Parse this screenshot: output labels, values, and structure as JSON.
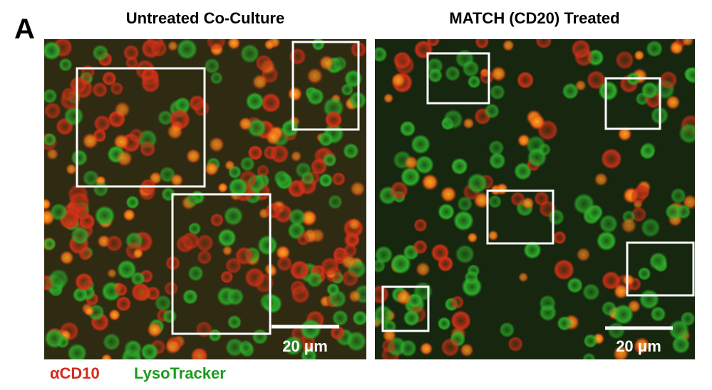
{
  "panel_label": "A",
  "panels": [
    {
      "title": "Untreated Co-Culture",
      "scale_bar": "20 μm"
    },
    {
      "title": "MATCH (CD20) Treated",
      "scale_bar": "20 μm"
    }
  ],
  "legend": [
    {
      "label": "αCD10",
      "color": "#d42a1e"
    },
    {
      "label": "LysoTracker",
      "color": "#1f9a1f"
    }
  ]
}
